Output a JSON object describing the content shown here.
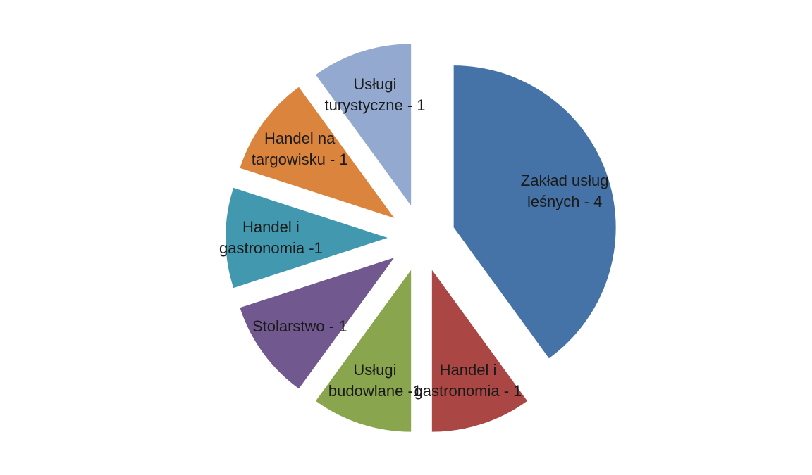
{
  "chart_data": {
    "type": "pie",
    "categories": [
      "Zakład usług leśnych - 4",
      "Handel i gastronomia - 1",
      "Usługi budowlane -1",
      "Stolarstwo - 1",
      "Handel i gastronomia -1",
      "Handel na targowisku - 1",
      "Usługi turystyczne - 1"
    ],
    "values": [
      4,
      1,
      1,
      1,
      1,
      1,
      1
    ],
    "colors": [
      "#4573a7",
      "#aa4644",
      "#89a54e",
      "#71588f",
      "#4198af",
      "#db843d",
      "#93a9cf"
    ]
  }
}
